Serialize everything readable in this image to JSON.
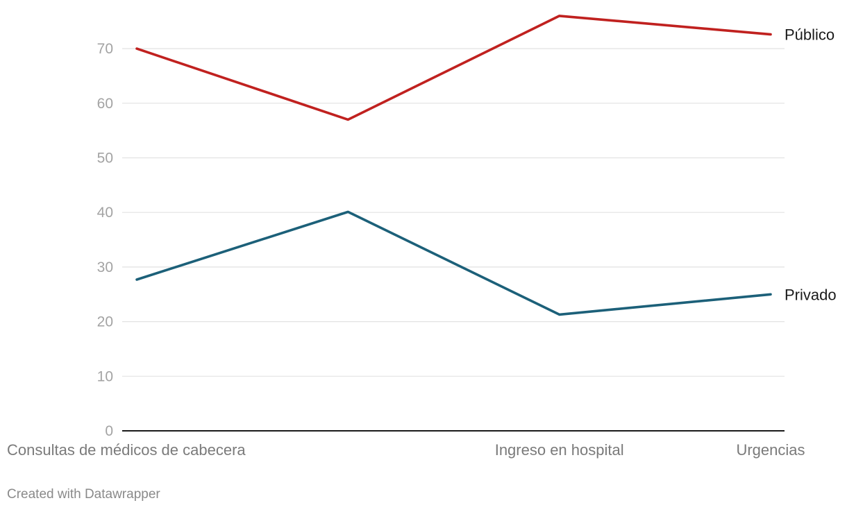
{
  "chart_data": {
    "type": "line",
    "categories": [
      "Consultas de médicos de cabecera",
      "",
      "Ingreso en hospital",
      "Urgencias"
    ],
    "series": [
      {
        "name": "Público",
        "values": [
          70,
          57,
          76,
          72.6
        ],
        "color": "#c0211f"
      },
      {
        "name": "Privado",
        "values": [
          27.7,
          40.1,
          21.3,
          25
        ],
        "color": "#1c6079"
      }
    ],
    "ylim": [
      0,
      76
    ],
    "yticks": [
      0,
      10,
      20,
      30,
      40,
      50,
      60,
      70
    ],
    "title": "",
    "xlabel": "",
    "ylabel": "",
    "grid": true
  },
  "footer": {
    "credit": "Created with Datawrapper"
  }
}
